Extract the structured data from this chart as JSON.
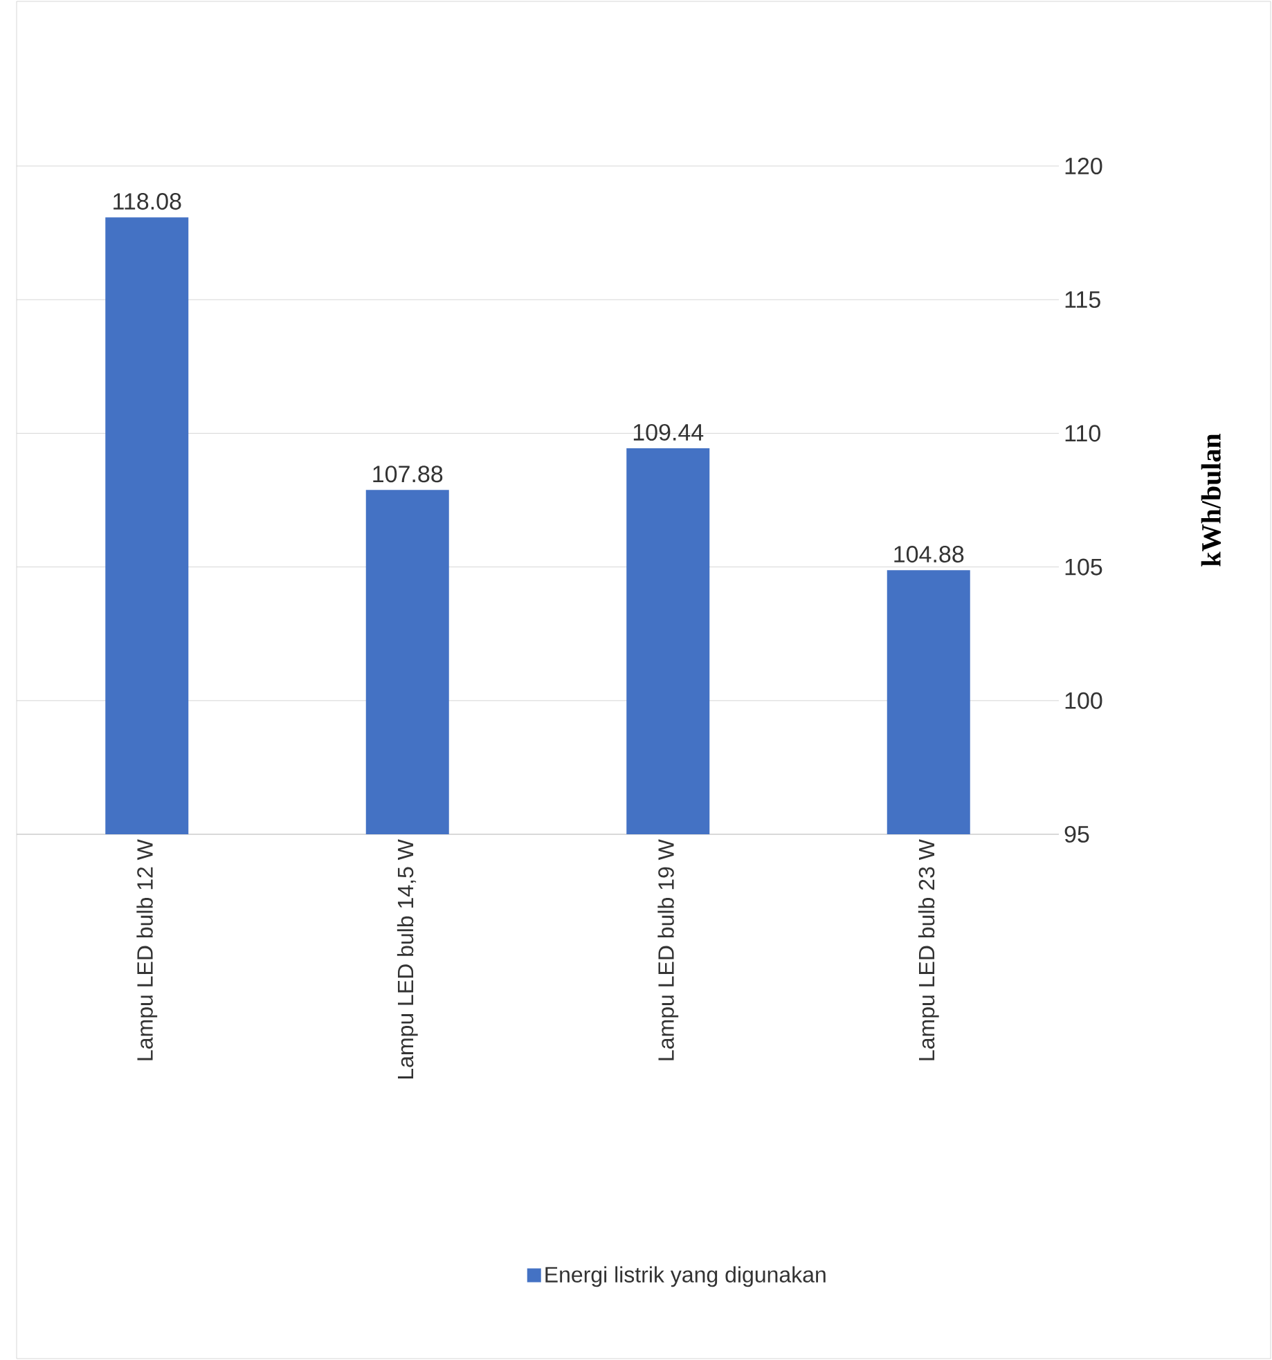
{
  "chart_data": {
    "type": "bar",
    "categories": [
      "Lampu LED bulb 12 W",
      "Lampu LED bulb 14,5 W",
      "Lampu LED bulb 19 W",
      "Lampu LED bulb 23 W"
    ],
    "series": [
      {
        "name": "Energi listrik yang digunakan",
        "color": "#4472c4",
        "values": [
          118.08,
          107.88,
          109.44,
          104.88
        ]
      }
    ],
    "ylabel": "kWh/bulan",
    "ylim": [
      95,
      120
    ],
    "yticks": [
      95,
      100,
      105,
      110,
      115,
      120
    ],
    "grid": "y",
    "data_labels": true,
    "legend": "bottom"
  }
}
